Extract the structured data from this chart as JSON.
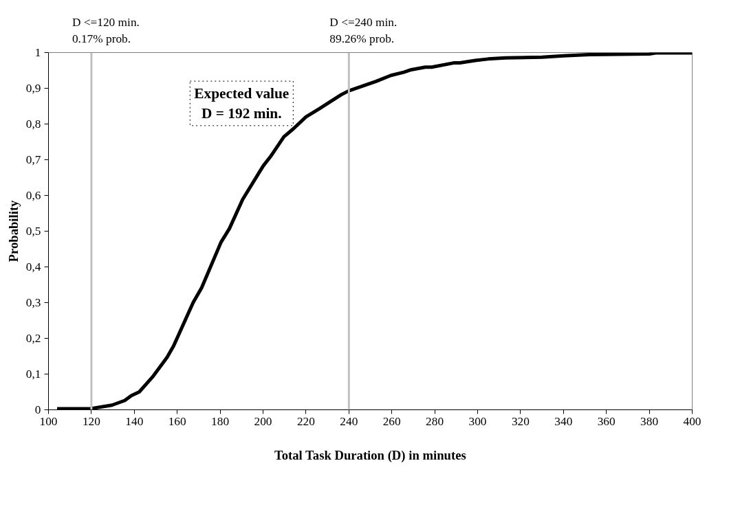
{
  "chart_data": {
    "type": "line",
    "xlabel": "Total Task Duration (D) in minutes",
    "ylabel": "Probability",
    "x": [
      104,
      119.5,
      129.6,
      135.5,
      138.7,
      142.3,
      148.5,
      155.3,
      158.4,
      167.4,
      171.4,
      180.4,
      184.3,
      190.5,
      200.1,
      203.5,
      209.7,
      214.2,
      220,
      226.3,
      236.4,
      240,
      252.5,
      259.6,
      265.6,
      269.1,
      275.6,
      278.6,
      288.8,
      291.7,
      298.9,
      304.9,
      313,
      330,
      340,
      352,
      380,
      383,
      400
    ],
    "series": [
      {
        "color": "#000000",
        "values": [
          0.003,
          0.003,
          0.013,
          0.026,
          0.04,
          0.05,
          0.092,
          0.147,
          0.18,
          0.3,
          0.342,
          0.469,
          0.507,
          0.589,
          0.683,
          0.709,
          0.764,
          0.787,
          0.82,
          0.843,
          0.882,
          0.893,
          0.919,
          0.936,
          0.945,
          0.952,
          0.959,
          0.959,
          0.971,
          0.971,
          0.978,
          0.982,
          0.985,
          0.987,
          0.991,
          0.994,
          0.996,
          0.999,
          0.999
        ]
      }
    ],
    "xlim": [
      100,
      400
    ],
    "xticks": [
      100,
      120,
      140,
      160,
      180,
      200,
      220,
      240,
      260,
      280,
      300,
      320,
      340,
      360,
      380,
      400
    ],
    "ylim": [
      0,
      1
    ],
    "yticks": [
      0,
      {
        "value": 0.1,
        "label": "0,1"
      },
      {
        "value": 0.2,
        "label": "0,2"
      },
      {
        "value": 0.3,
        "label": "0,3"
      },
      {
        "value": 0.4,
        "label": "0,4"
      },
      {
        "value": 0.5,
        "label": "0,5"
      },
      {
        "value": 0.6,
        "label": "0,6"
      },
      {
        "value": 0.7,
        "label": "0,7"
      },
      {
        "value": 0.8,
        "label": "0,8"
      },
      {
        "value": 0.9,
        "label": "0,9"
      },
      1
    ],
    "ref_lines": [
      {
        "axis": "x",
        "value": 120,
        "label": "D <=120 min.\n0.17% prob.",
        "color": "#c0c0c0"
      },
      {
        "axis": "x",
        "value": 240,
        "label": "D <=240 min.\n89.26% prob.",
        "color": "#c0c0c0"
      }
    ],
    "annotations": [
      "Expected value\nD = 192 min."
    ],
    "grid": false,
    "marker": "none",
    "line_style": "solid"
  }
}
